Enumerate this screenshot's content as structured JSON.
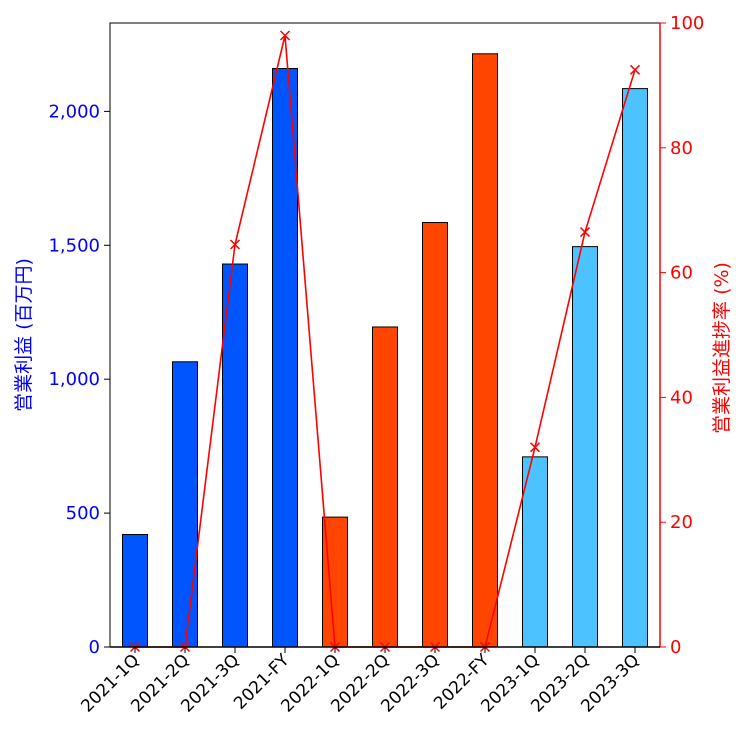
{
  "chart_data": {
    "type": "bar",
    "categories": [
      "2021-1Q",
      "2021-2Q",
      "2021-3Q",
      "2021-FY",
      "2022-1Q",
      "2022-2Q",
      "2022-3Q",
      "2022-FY",
      "2023-1Q",
      "2023-2Q",
      "2023-3Q"
    ],
    "series": [
      {
        "type": "bar",
        "axis": "left",
        "values": [
          420,
          1065,
          1430,
          2160,
          485,
          1195,
          1585,
          2215,
          710,
          1495,
          2085
        ],
        "colors": [
          "#0055ff",
          "#0055ff",
          "#0055ff",
          "#0055ff",
          "#ff4500",
          "#ff4500",
          "#ff4500",
          "#ff4500",
          "#4cc3ff",
          "#4cc3ff",
          "#4cc3ff"
        ]
      },
      {
        "type": "line",
        "axis": "right",
        "marker": "x",
        "color": "#ff0000",
        "values": [
          0,
          0,
          64.5,
          98,
          0,
          0,
          0,
          0,
          32,
          66.5,
          92.5
        ]
      }
    ],
    "ylabel": "営業利益 (百万円)",
    "ylabel_right": "営業利益進捗率 (%)",
    "ylim": [
      0,
      2330
    ],
    "ylim_right": [
      0,
      100
    ],
    "yticks": [
      0,
      500,
      1000,
      1500,
      2000
    ],
    "ytick_labels": [
      "0",
      "500",
      "1,000",
      "1,500",
      "2,000"
    ],
    "yticks_right": [
      0,
      20,
      40,
      60,
      80,
      100
    ],
    "ytick_labels_right": [
      "0",
      "20",
      "40",
      "60",
      "80",
      "100"
    ],
    "left_axis_color": "#0000ff",
    "right_axis_color": "#ff0000",
    "grid": false
  }
}
